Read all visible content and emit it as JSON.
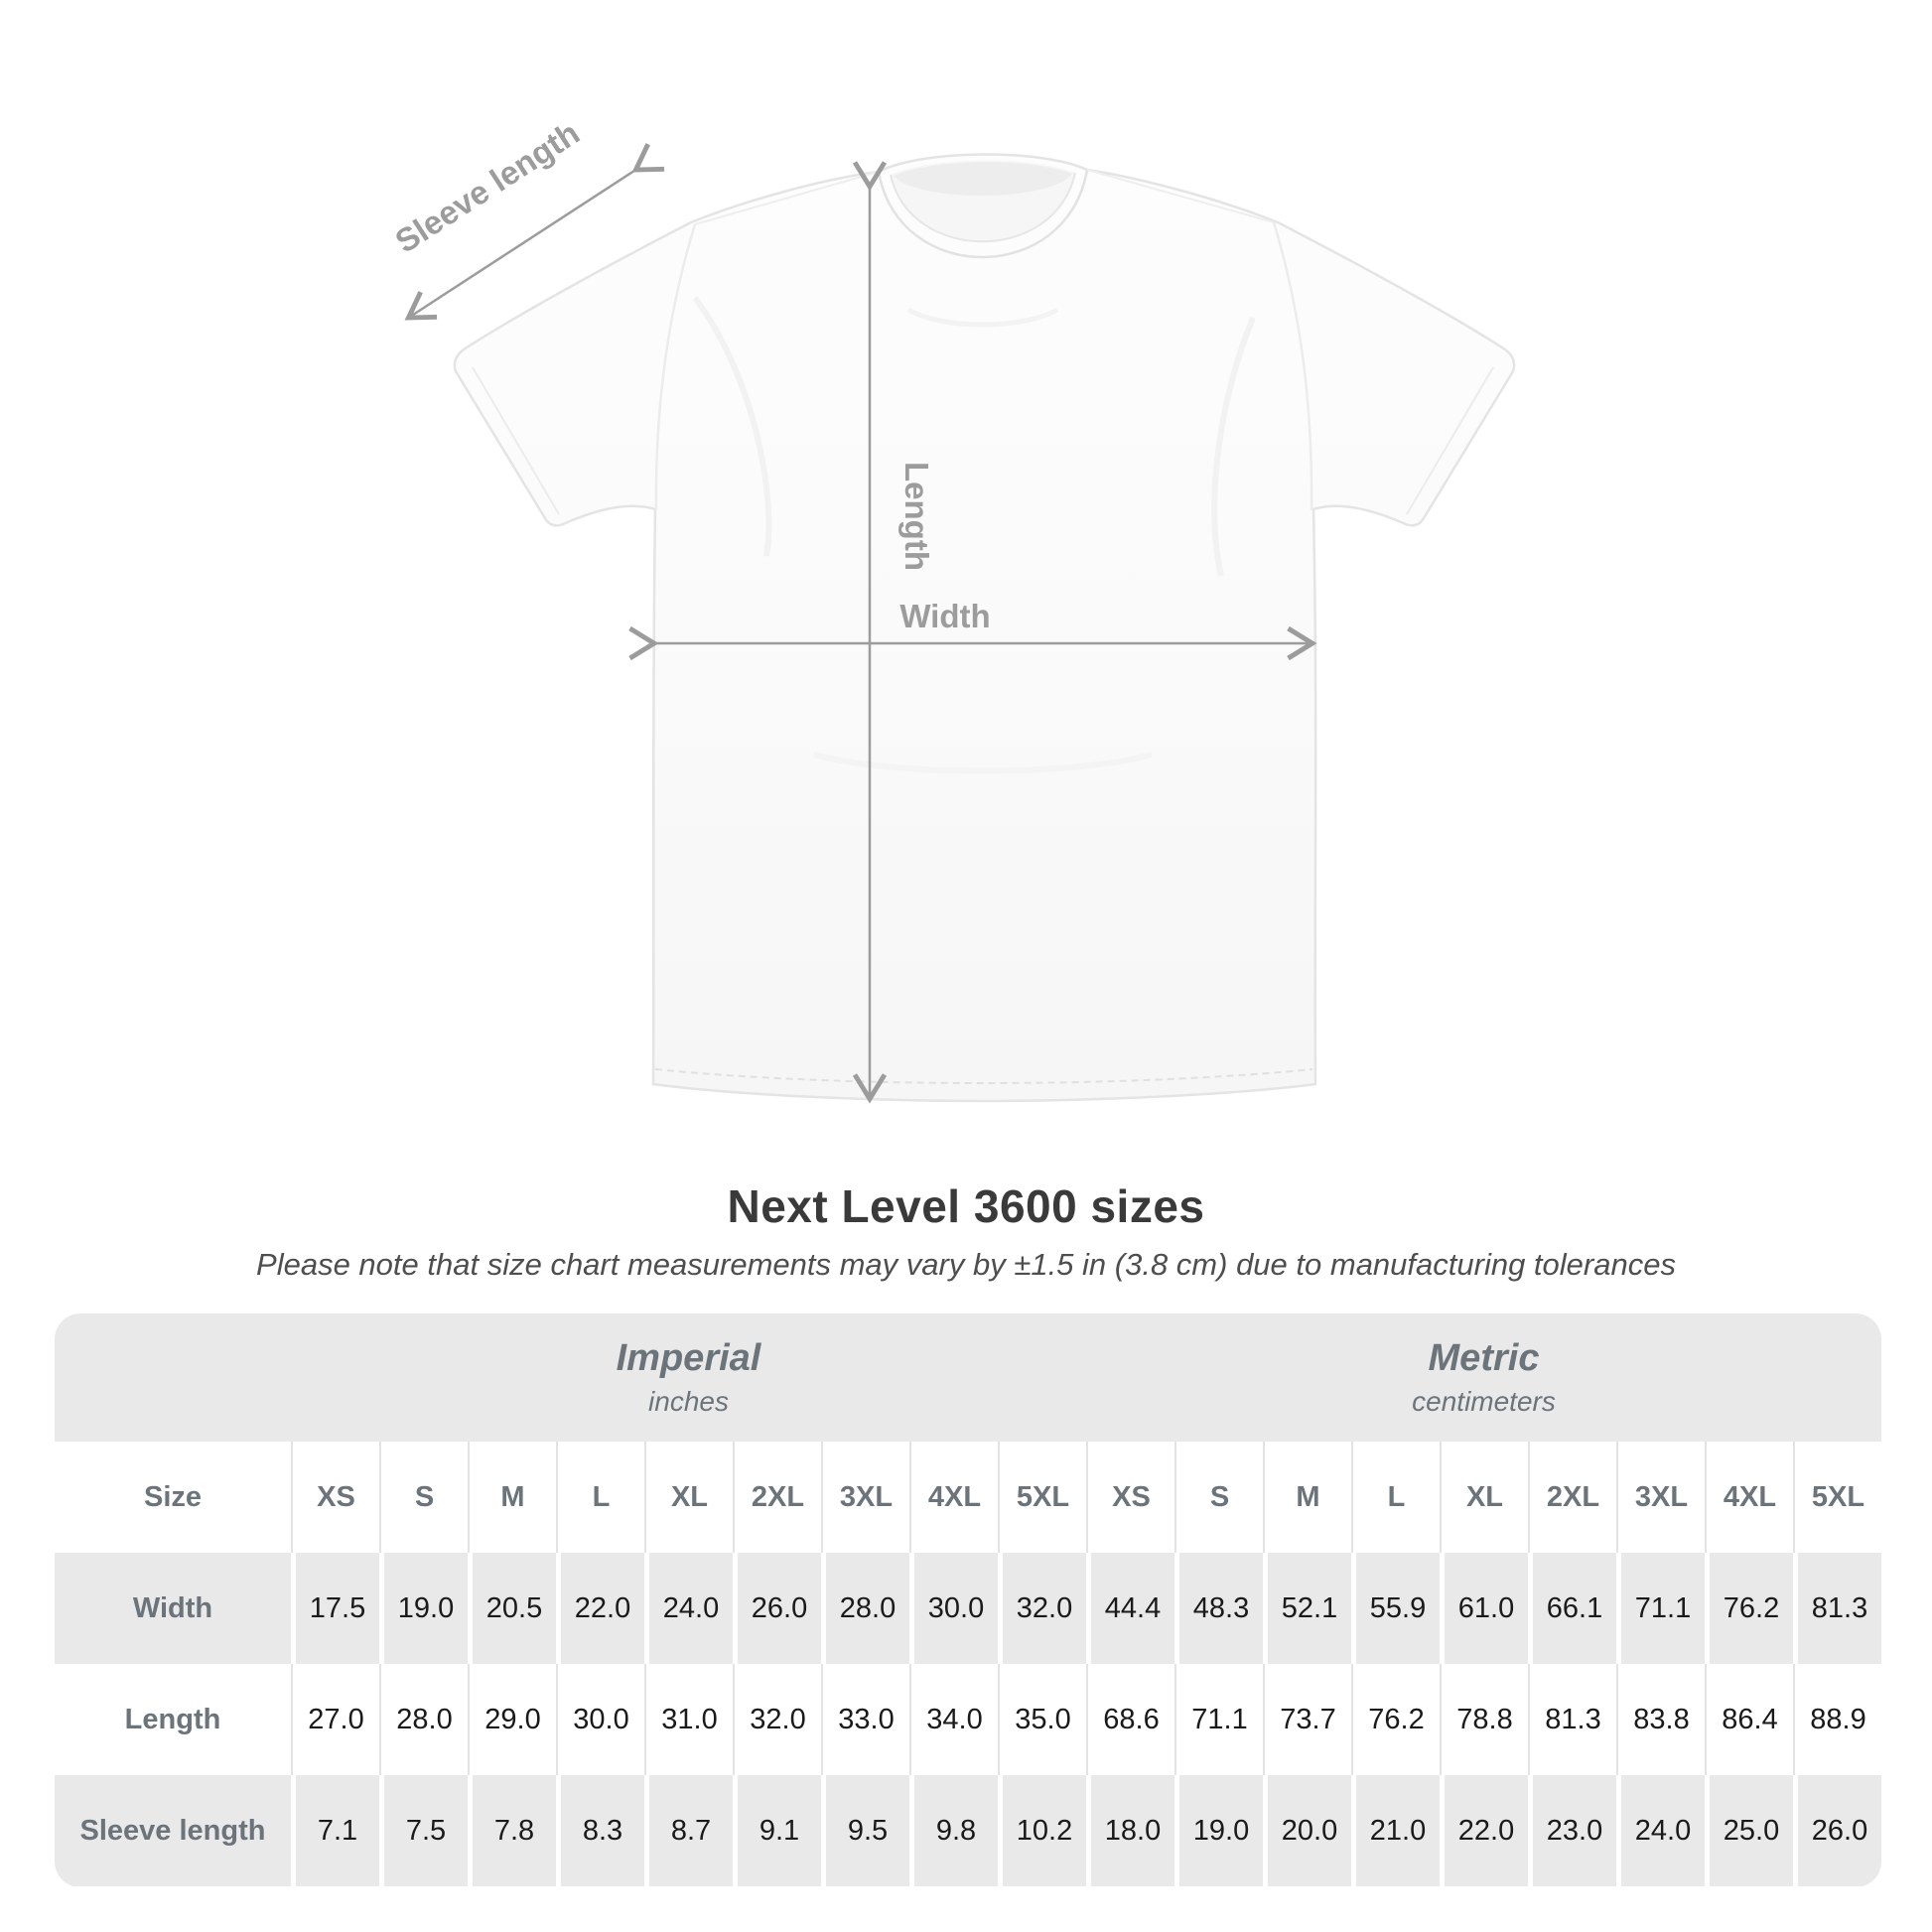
{
  "title": "Next Level 3600 sizes",
  "subtitle": "Please note that size chart measurements may vary by ±1.5 in (3.8 cm) due to manufacturing tolerances",
  "diagram": {
    "annotation_color": "#9c9c9c",
    "labels": {
      "sleeve_length": "Sleeve length",
      "length": "Length",
      "width": "Width"
    }
  },
  "table": {
    "colors": {
      "stripe": "#e9e9e9",
      "header_text": "#6b747b",
      "data_text": "#1a1a1a"
    },
    "unit_groups": [
      {
        "label": "Imperial",
        "sublabel": "inches"
      },
      {
        "label": "Metric",
        "sublabel": "centimeters"
      }
    ],
    "size_row_label": "Size",
    "sizes": [
      "XS",
      "S",
      "M",
      "L",
      "XL",
      "2XL",
      "3XL",
      "4XL",
      "5XL"
    ],
    "rows": [
      {
        "label": "Width",
        "imperial": [
          "17.5",
          "19.0",
          "20.5",
          "22.0",
          "24.0",
          "26.0",
          "28.0",
          "30.0",
          "32.0"
        ],
        "metric": [
          "44.4",
          "48.3",
          "52.1",
          "55.9",
          "61.0",
          "66.1",
          "71.1",
          "76.2",
          "81.3"
        ]
      },
      {
        "label": "Length",
        "imperial": [
          "27.0",
          "28.0",
          "29.0",
          "30.0",
          "31.0",
          "32.0",
          "33.0",
          "34.0",
          "35.0"
        ],
        "metric": [
          "68.6",
          "71.1",
          "73.7",
          "76.2",
          "78.8",
          "81.3",
          "83.8",
          "86.4",
          "88.9"
        ]
      },
      {
        "label": "Sleeve length",
        "imperial": [
          "7.1",
          "7.5",
          "7.8",
          "8.3",
          "8.7",
          "9.1",
          "9.5",
          "9.8",
          "10.2"
        ],
        "metric": [
          "18.0",
          "19.0",
          "20.0",
          "21.0",
          "22.0",
          "23.0",
          "24.0",
          "25.0",
          "26.0"
        ]
      }
    ]
  },
  "chart_data": {
    "type": "table",
    "title": "Next Level 3600 sizes",
    "note": "Please note that size chart measurements may vary by ±1.5 in (3.8 cm) due to manufacturing tolerances",
    "columns_imperial_inches": [
      "XS",
      "S",
      "M",
      "L",
      "XL",
      "2XL",
      "3XL",
      "4XL",
      "5XL"
    ],
    "columns_metric_centimeters": [
      "XS",
      "S",
      "M",
      "L",
      "XL",
      "2XL",
      "3XL",
      "4XL",
      "5XL"
    ],
    "rows": [
      {
        "measure": "Width",
        "imperial_in": [
          17.5,
          19.0,
          20.5,
          22.0,
          24.0,
          26.0,
          28.0,
          30.0,
          32.0
        ],
        "metric_cm": [
          44.4,
          48.3,
          52.1,
          55.9,
          61.0,
          66.1,
          71.1,
          76.2,
          81.3
        ]
      },
      {
        "measure": "Length",
        "imperial_in": [
          27.0,
          28.0,
          29.0,
          30.0,
          31.0,
          32.0,
          33.0,
          34.0,
          35.0
        ],
        "metric_cm": [
          68.6,
          71.1,
          73.7,
          76.2,
          78.8,
          81.3,
          83.8,
          86.4,
          88.9
        ]
      },
      {
        "measure": "Sleeve length",
        "imperial_in": [
          7.1,
          7.5,
          7.8,
          8.3,
          8.7,
          9.1,
          9.5,
          9.8,
          10.2
        ],
        "metric_cm": [
          18.0,
          19.0,
          20.0,
          21.0,
          22.0,
          23.0,
          24.0,
          25.0,
          26.0
        ]
      }
    ]
  }
}
